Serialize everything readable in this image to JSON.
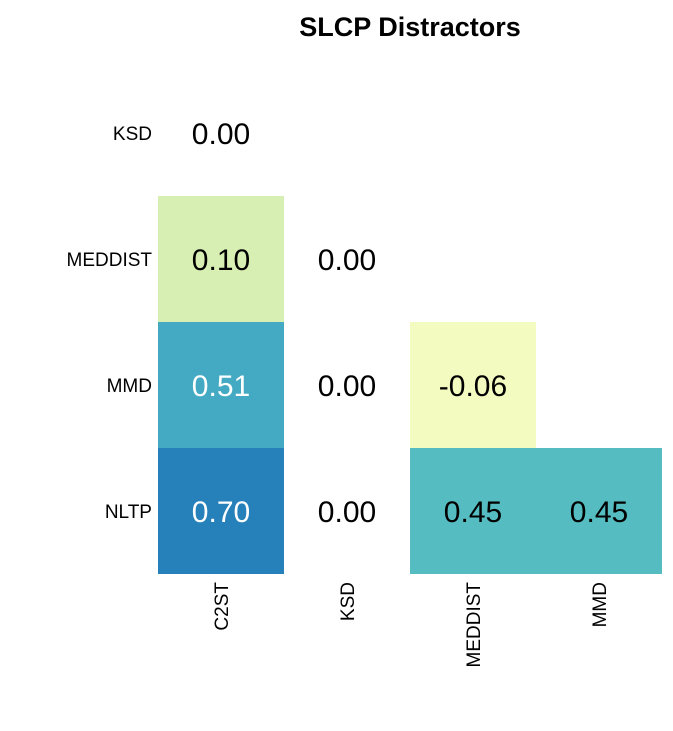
{
  "chart_data": {
    "type": "heatmap",
    "title": "SLCP Distractors",
    "rows": [
      "KSD",
      "MEDDIST",
      "MMD",
      "NLTP"
    ],
    "columns": [
      "C2ST",
      "KSD",
      "MEDDIST",
      "MMD"
    ],
    "shaded_columns": [
      "C2ST",
      "MEDDIST",
      "MMD"
    ],
    "cells": [
      {
        "row": "KSD",
        "col": "C2ST",
        "value": 0.0,
        "label": "0.00",
        "color": "#ffffff",
        "text_color": "#000000"
      },
      {
        "row": "MEDDIST",
        "col": "C2ST",
        "value": 0.1,
        "label": "0.10",
        "color": "#d8efb3",
        "text_color": "#000000"
      },
      {
        "row": "MEDDIST",
        "col": "KSD",
        "value": 0.0,
        "label": "0.00",
        "color": "#ffffff",
        "text_color": "#000000"
      },
      {
        "row": "MMD",
        "col": "C2ST",
        "value": 0.51,
        "label": "0.51",
        "color": "#44aac3",
        "text_color": "#ffffff"
      },
      {
        "row": "MMD",
        "col": "KSD",
        "value": 0.0,
        "label": "0.00",
        "color": "#ffffff",
        "text_color": "#000000"
      },
      {
        "row": "MMD",
        "col": "MEDDIST",
        "value": -0.06,
        "label": "-0.06",
        "color": "#f4fbc1",
        "text_color": "#000000"
      },
      {
        "row": "NLTP",
        "col": "C2ST",
        "value": 0.7,
        "label": "0.70",
        "color": "#2680ba",
        "text_color": "#ffffff"
      },
      {
        "row": "NLTP",
        "col": "KSD",
        "value": 0.0,
        "label": "0.00",
        "color": "#ffffff",
        "text_color": "#000000"
      },
      {
        "row": "NLTP",
        "col": "MEDDIST",
        "value": 0.45,
        "label": "0.45",
        "color": "#55bdc1",
        "text_color": "#000000"
      },
      {
        "row": "NLTP",
        "col": "MMD",
        "value": 0.45,
        "label": "0.45",
        "color": "#55bdc1",
        "text_color": "#000000"
      }
    ]
  }
}
